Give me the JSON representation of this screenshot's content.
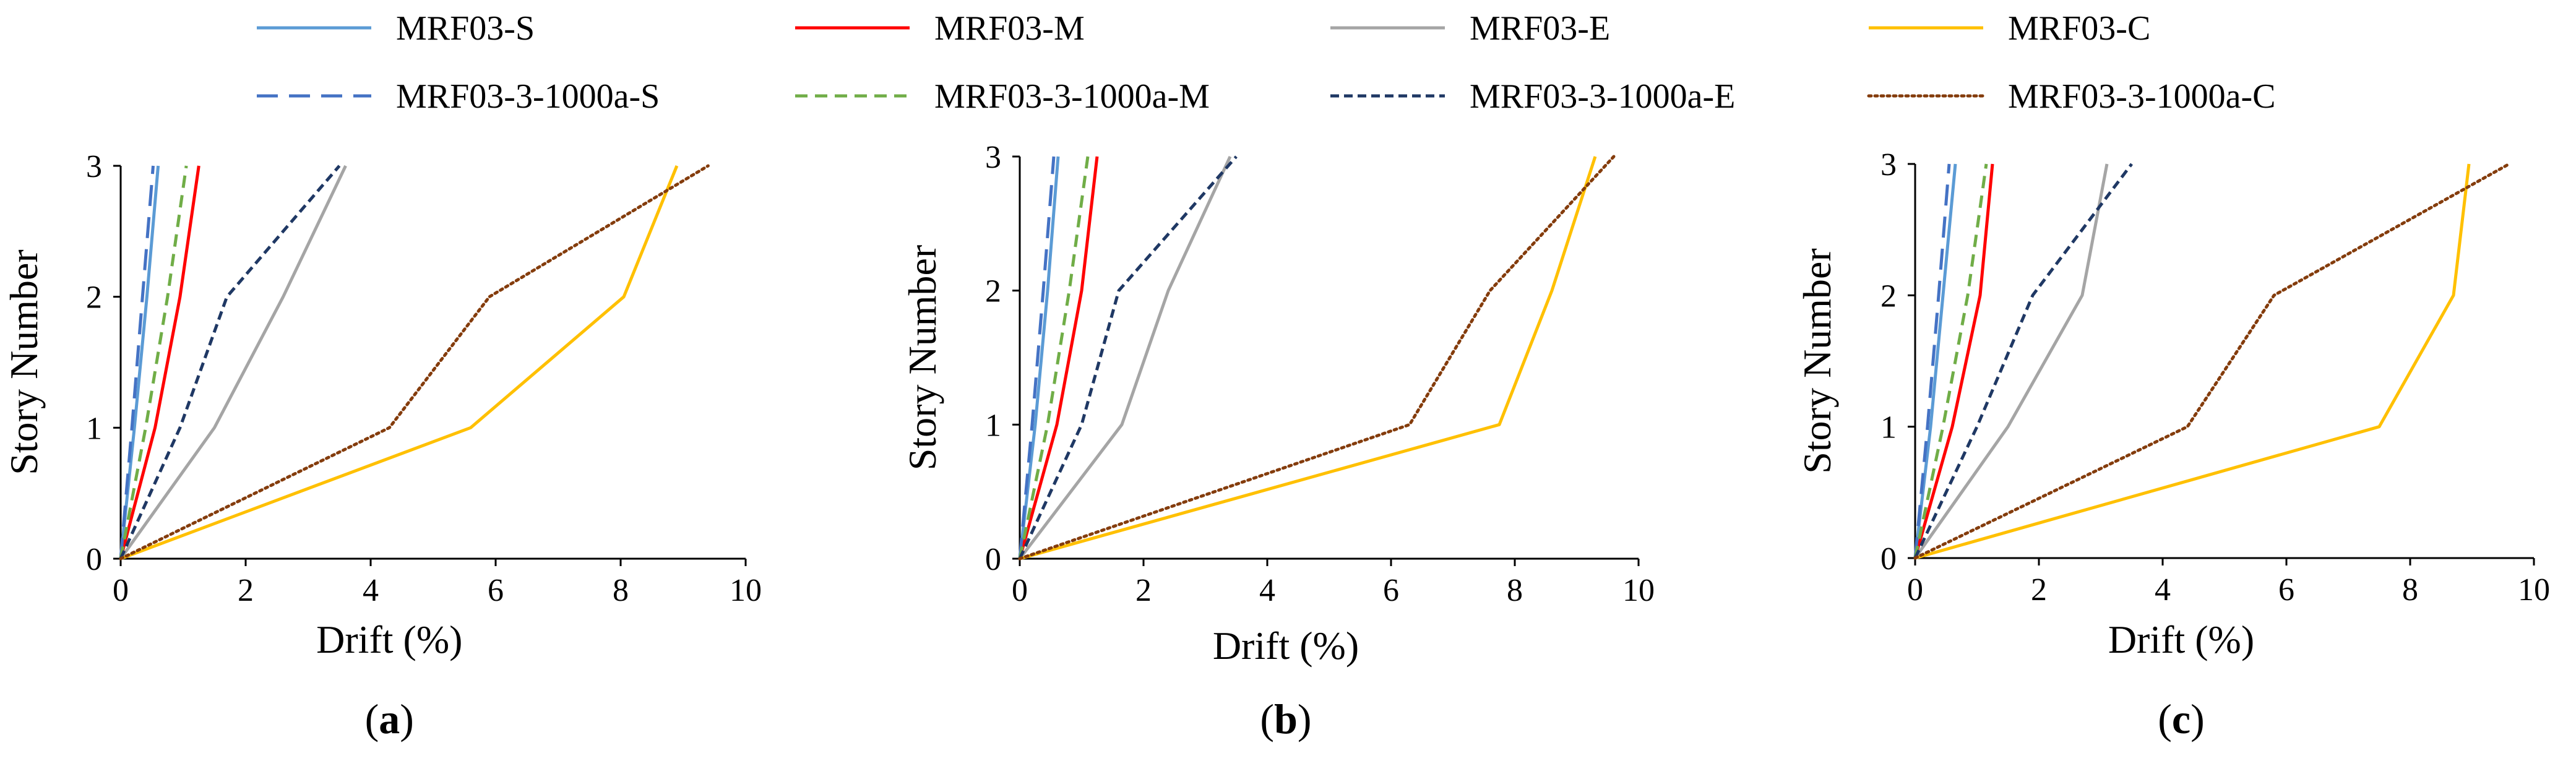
{
  "chart_data": [
    {
      "type": "line",
      "panel_label": "a",
      "xlabel": "Drift (%)",
      "ylabel": "Story Number",
      "xlim": [
        0,
        10
      ],
      "ylim": [
        0,
        3
      ],
      "xticks": [
        0,
        2,
        4,
        6,
        8,
        10
      ],
      "yticks": [
        0,
        1,
        2,
        3
      ],
      "grid": false,
      "series": [
        {
          "name": "MRF03-S",
          "x": [
            0,
            0.22,
            0.42,
            0.6
          ],
          "y": [
            0,
            1,
            2,
            3
          ]
        },
        {
          "name": "MRF03-M",
          "x": [
            0,
            0.55,
            0.95,
            1.25
          ],
          "y": [
            0,
            1,
            2,
            3
          ]
        },
        {
          "name": "MRF03-E",
          "x": [
            0,
            1.5,
            2.6,
            3.6
          ],
          "y": [
            0,
            1,
            2,
            3
          ]
        },
        {
          "name": "MRF03-C",
          "x": [
            0,
            5.6,
            8.05,
            8.9
          ],
          "y": [
            0,
            1,
            2,
            3
          ]
        },
        {
          "name": "MRF03-3-1000a-S",
          "x": [
            0,
            0.18,
            0.35,
            0.52
          ],
          "y": [
            0,
            1,
            2,
            3
          ]
        },
        {
          "name": "MRF03-3-1000a-M",
          "x": [
            0,
            0.4,
            0.75,
            1.05
          ],
          "y": [
            0,
            1,
            2,
            3
          ]
        },
        {
          "name": "MRF03-3-1000a-E",
          "x": [
            0,
            0.95,
            1.7,
            3.5
          ],
          "y": [
            0,
            1,
            2,
            3
          ]
        },
        {
          "name": "MRF03-3-1000a-C",
          "x": [
            0,
            4.3,
            5.9,
            9.4
          ],
          "y": [
            0,
            1,
            2,
            3
          ]
        }
      ]
    },
    {
      "type": "line",
      "panel_label": "b",
      "xlabel": "Drift (%)",
      "ylabel": "Story Number",
      "xlim": [
        0,
        10
      ],
      "ylim": [
        0,
        3
      ],
      "xticks": [
        0,
        2,
        4,
        6,
        8,
        10
      ],
      "yticks": [
        0,
        1,
        2,
        3
      ],
      "grid": false,
      "series": [
        {
          "name": "MRF03-S",
          "x": [
            0,
            0.25,
            0.45,
            0.62
          ],
          "y": [
            0,
            1,
            2,
            3
          ]
        },
        {
          "name": "MRF03-M",
          "x": [
            0,
            0.6,
            1.0,
            1.25
          ],
          "y": [
            0,
            1,
            2,
            3
          ]
        },
        {
          "name": "MRF03-E",
          "x": [
            0,
            1.65,
            2.4,
            3.4
          ],
          "y": [
            0,
            1,
            2,
            3
          ]
        },
        {
          "name": "MRF03-C",
          "x": [
            0,
            7.75,
            8.6,
            9.3
          ],
          "y": [
            0,
            1,
            2,
            3
          ]
        },
        {
          "name": "MRF03-3-1000a-S",
          "x": [
            0,
            0.2,
            0.38,
            0.55
          ],
          "y": [
            0,
            1,
            2,
            3
          ]
        },
        {
          "name": "MRF03-3-1000a-M",
          "x": [
            0,
            0.45,
            0.8,
            1.1
          ],
          "y": [
            0,
            1,
            2,
            3
          ]
        },
        {
          "name": "MRF03-3-1000a-E",
          "x": [
            0,
            1.0,
            1.6,
            3.5
          ],
          "y": [
            0,
            1,
            2,
            3
          ]
        },
        {
          "name": "MRF03-3-1000a-C",
          "x": [
            0,
            6.3,
            7.6,
            9.6
          ],
          "y": [
            0,
            1,
            2,
            3
          ]
        }
      ]
    },
    {
      "type": "line",
      "panel_label": "c",
      "xlabel": "Drift (%)",
      "ylabel": "Story Number",
      "xlim": [
        0,
        10
      ],
      "ylim": [
        0,
        3
      ],
      "xticks": [
        0,
        2,
        4,
        6,
        8,
        10
      ],
      "yticks": [
        0,
        1,
        2,
        3
      ],
      "grid": false,
      "series": [
        {
          "name": "MRF03-S",
          "x": [
            0,
            0.25,
            0.45,
            0.65
          ],
          "y": [
            0,
            1,
            2,
            3
          ]
        },
        {
          "name": "MRF03-M",
          "x": [
            0,
            0.6,
            1.05,
            1.25
          ],
          "y": [
            0,
            1,
            2,
            3
          ]
        },
        {
          "name": "MRF03-E",
          "x": [
            0,
            1.5,
            2.7,
            3.1
          ],
          "y": [
            0,
            1,
            2,
            3
          ]
        },
        {
          "name": "MRF03-C",
          "x": [
            0,
            7.5,
            8.7,
            8.95
          ],
          "y": [
            0,
            1,
            2,
            3
          ]
        },
        {
          "name": "MRF03-3-1000a-S",
          "x": [
            0,
            0.2,
            0.38,
            0.55
          ],
          "y": [
            0,
            1,
            2,
            3
          ]
        },
        {
          "name": "MRF03-3-1000a-M",
          "x": [
            0,
            0.45,
            0.85,
            1.15
          ],
          "y": [
            0,
            1,
            2,
            3
          ]
        },
        {
          "name": "MRF03-3-1000a-E",
          "x": [
            0,
            1.0,
            1.9,
            3.5
          ],
          "y": [
            0,
            1,
            2,
            3
          ]
        },
        {
          "name": "MRF03-3-1000a-C",
          "x": [
            0,
            4.4,
            5.8,
            9.6
          ],
          "y": [
            0,
            1,
            2,
            3
          ]
        }
      ]
    }
  ],
  "legend": {
    "placement": "top",
    "items": [
      {
        "name": "MRF03-S",
        "color": "#5B9BD5",
        "style": "solid"
      },
      {
        "name": "MRF03-M",
        "color": "#FF0000",
        "style": "solid"
      },
      {
        "name": "MRF03-E",
        "color": "#A5A5A5",
        "style": "solid"
      },
      {
        "name": "MRF03-C",
        "color": "#FFC000",
        "style": "solid"
      },
      {
        "name": "MRF03-3-1000a-S",
        "color": "#4472C4",
        "style": "long-dash"
      },
      {
        "name": "MRF03-3-1000a-M",
        "color": "#70AD47",
        "style": "dash"
      },
      {
        "name": "MRF03-3-1000a-E",
        "color": "#1F3864",
        "style": "short-dash"
      },
      {
        "name": "MRF03-3-1000a-C",
        "color": "#843C0C",
        "style": "dot"
      }
    ]
  }
}
